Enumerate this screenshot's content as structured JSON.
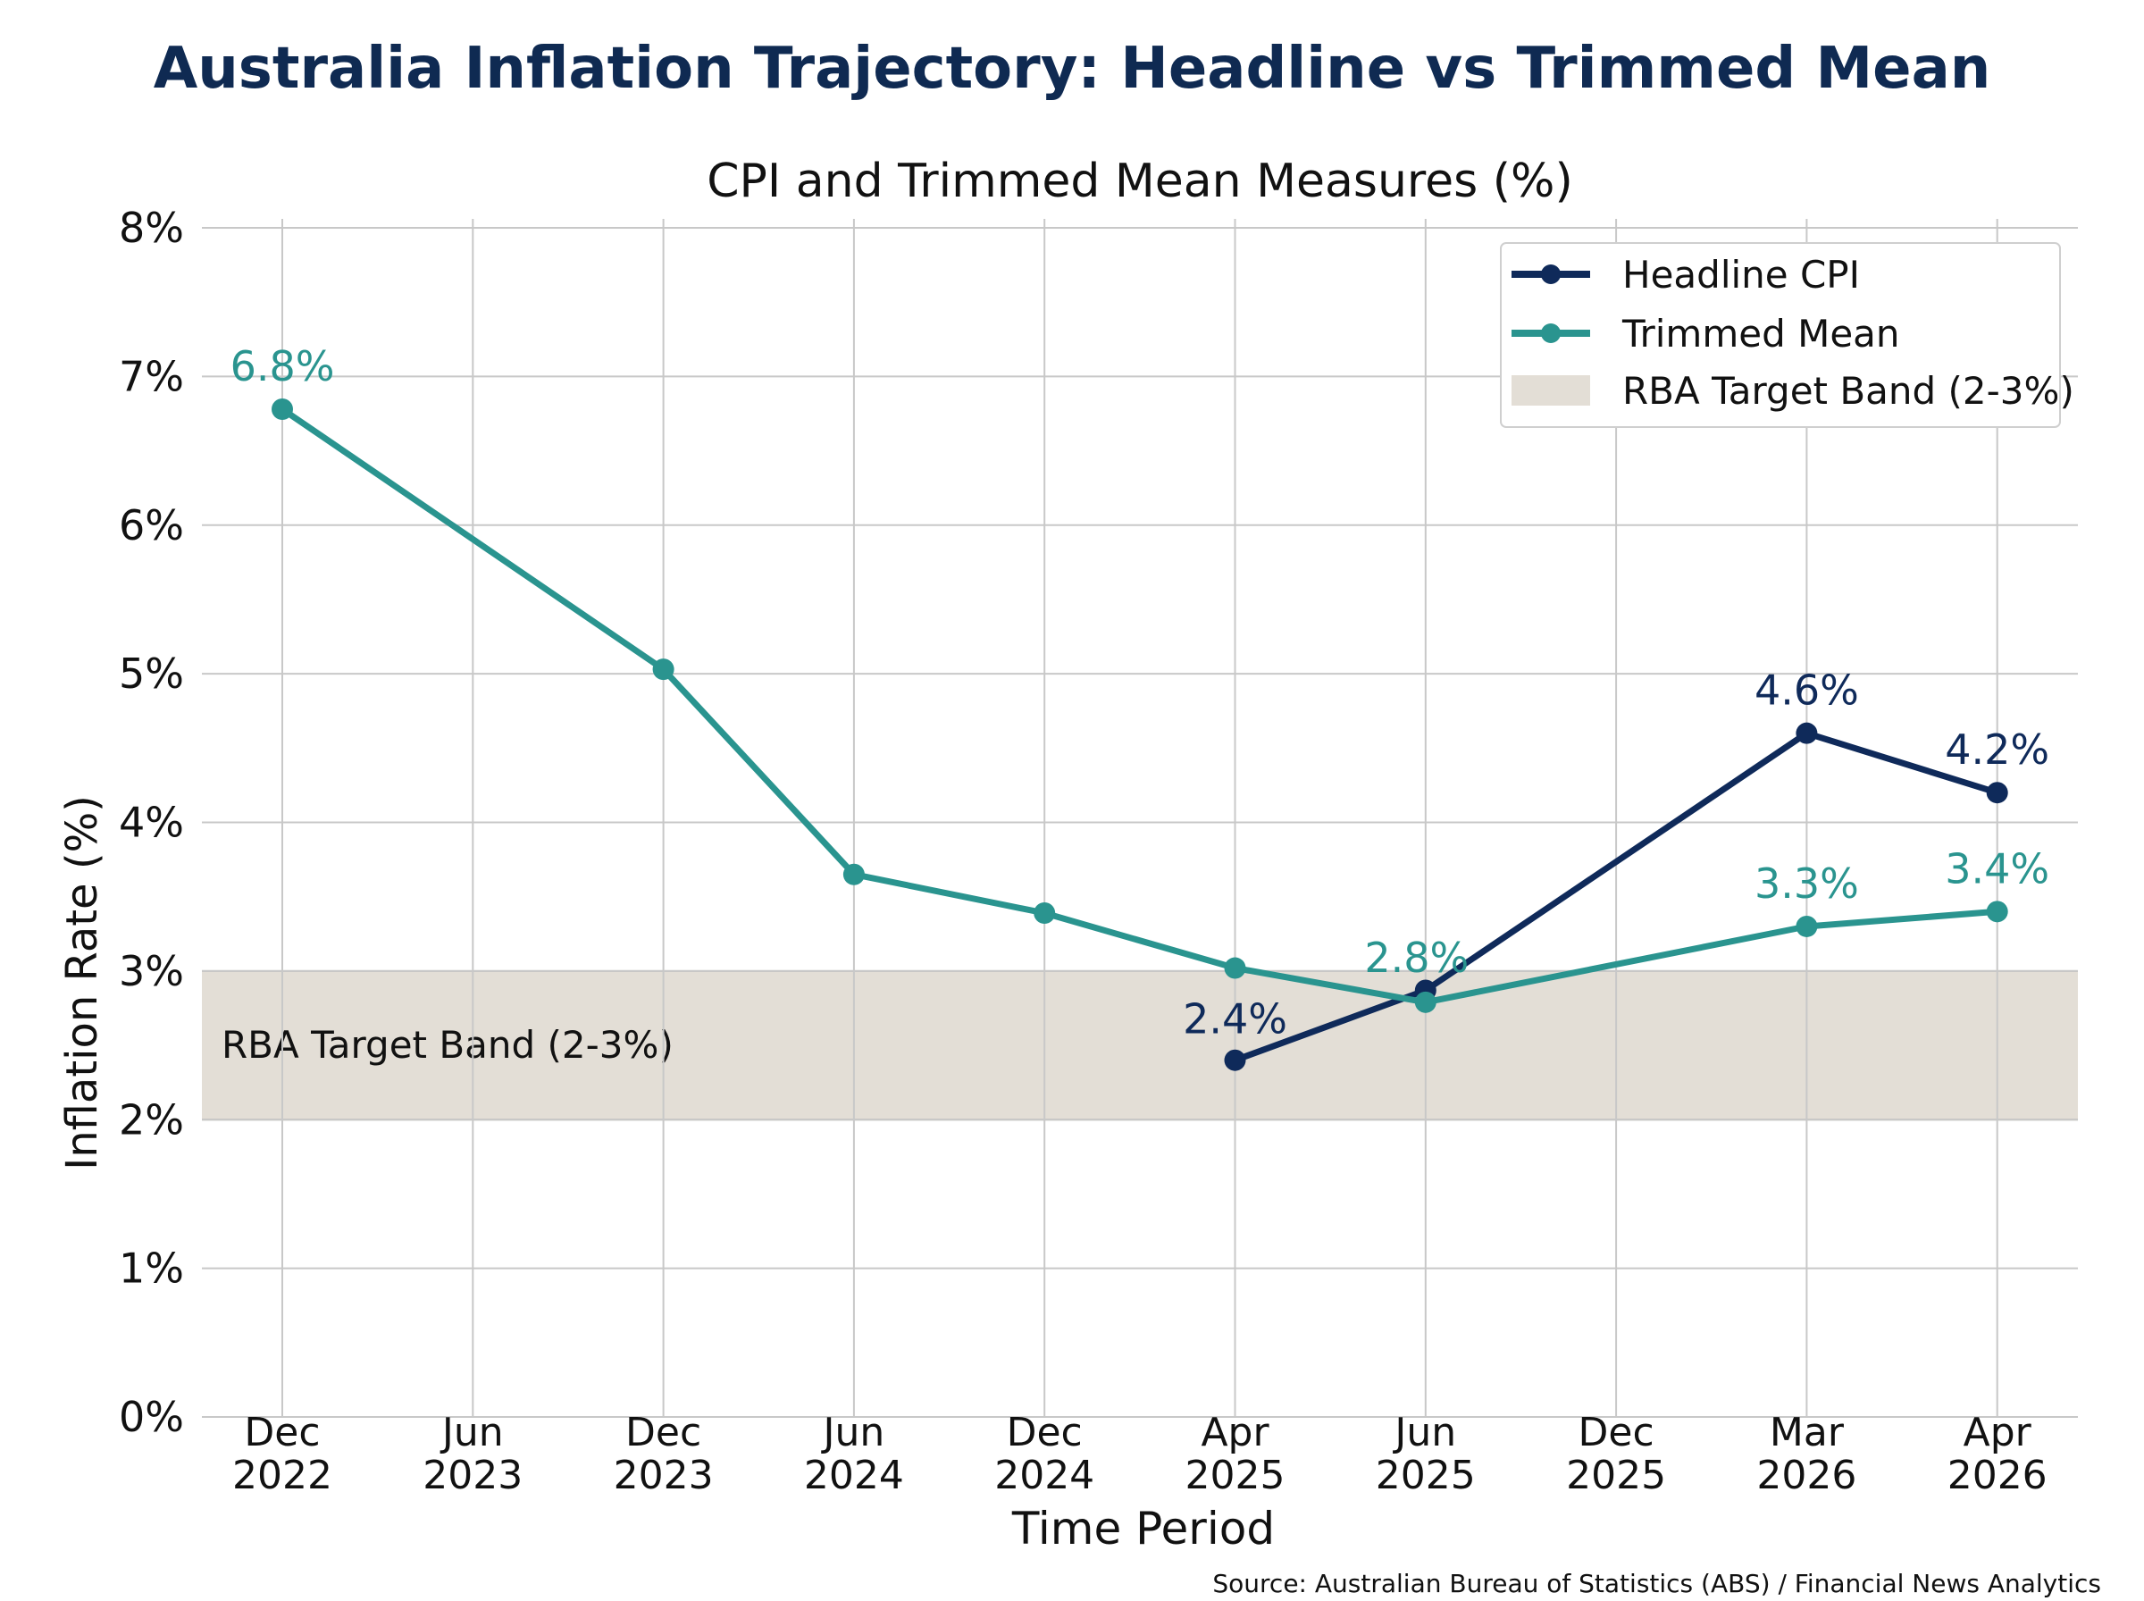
{
  "title": "Australia Inflation Trajectory: Headline vs Trimmed Mean",
  "subtitle": "CPI and Trimmed Mean Measures (%)",
  "source": "Source: Australian Bureau of Statistics (ABS) / Financial News Analytics",
  "colors": {
    "headline": "#0f2a5a",
    "trimmed": "#2a948f",
    "band_fill": "#e3ded6",
    "band_stroke": "#b8b4ac",
    "title": "#0f2a52",
    "grid": "#c8c8c8"
  },
  "chart_data": {
    "type": "line",
    "title": "CPI and Trimmed Mean Measures (%)",
    "xlabel": "Time Period",
    "ylabel": "Inflation Rate (%)",
    "ylim": [
      0,
      8
    ],
    "y_ticks": [
      0,
      1,
      2,
      3,
      4,
      5,
      6,
      7,
      8
    ],
    "y_tick_labels": [
      "0%",
      "1%",
      "2%",
      "3%",
      "4%",
      "5%",
      "6%",
      "7%",
      "8%"
    ],
    "categories": [
      "Dec 2022",
      "Jun 2023",
      "Dec 2023",
      "Jun 2024",
      "Dec 2024",
      "Apr 2025",
      "Jun 2025",
      "Dec 2025",
      "Mar 2026",
      "Apr 2026"
    ],
    "category_labels": [
      [
        "Dec",
        "2022"
      ],
      [
        "Jun",
        "2023"
      ],
      [
        "Dec",
        "2023"
      ],
      [
        "Jun",
        "2024"
      ],
      [
        "Dec",
        "2024"
      ],
      [
        "Apr",
        "2025"
      ],
      [
        "Jun",
        "2025"
      ],
      [
        "Dec",
        "2025"
      ],
      [
        "Mar",
        "2026"
      ],
      [
        "Apr",
        "2026"
      ]
    ],
    "grid": true,
    "legend_position": "top-right",
    "series": [
      {
        "name": "Headline CPI",
        "color": "#0f2a5a",
        "values": [
          null,
          null,
          null,
          null,
          null,
          2.4,
          2.87,
          null,
          4.6,
          4.2
        ],
        "data_labels": [
          null,
          null,
          null,
          null,
          null,
          "2.4%",
          null,
          null,
          "4.6%",
          "4.2%"
        ]
      },
      {
        "name": "Trimmed Mean",
        "color": "#2a948f",
        "values": [
          6.78,
          null,
          5.03,
          3.65,
          3.39,
          3.02,
          2.79,
          null,
          3.3,
          3.4
        ],
        "data_labels": [
          "6.8%",
          null,
          null,
          null,
          null,
          null,
          "2.8%",
          null,
          "3.3%",
          "3.4%"
        ]
      }
    ],
    "bands": [
      {
        "name": "RBA Target Band (2-3%)",
        "ymin": 2,
        "ymax": 3,
        "label": "RBA Target Band (2-3%)"
      }
    ]
  }
}
